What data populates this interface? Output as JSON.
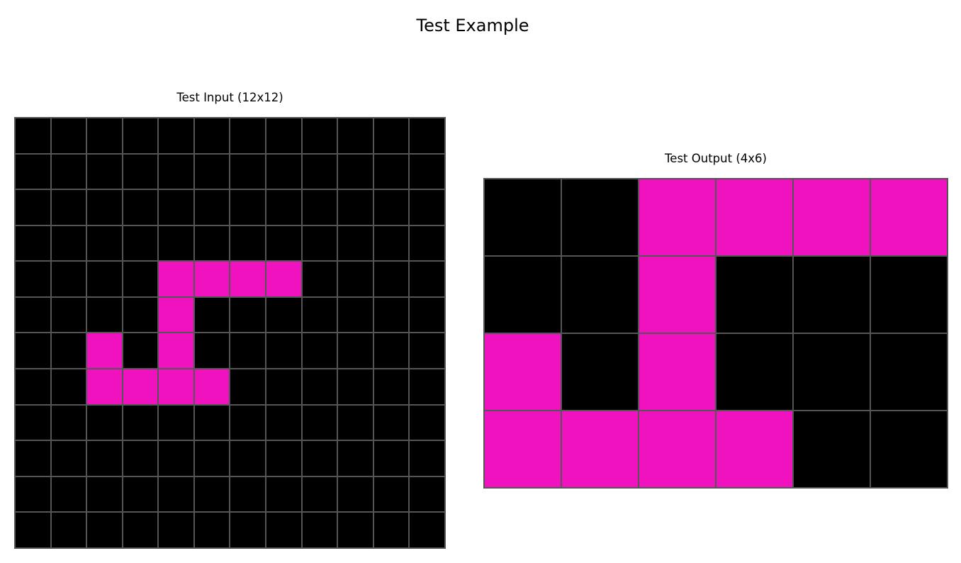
{
  "figure": {
    "title": "Test Example"
  },
  "palette": {
    "0": "#000000",
    "6": "#f012be"
  },
  "input_panel": {
    "title": "Test Input (12x12)",
    "grid": [
      [
        0,
        0,
        0,
        0,
        0,
        0,
        0,
        0,
        0,
        0,
        0,
        0
      ],
      [
        0,
        0,
        0,
        0,
        0,
        0,
        0,
        0,
        0,
        0,
        0,
        0
      ],
      [
        0,
        0,
        0,
        0,
        0,
        0,
        0,
        0,
        0,
        0,
        0,
        0
      ],
      [
        0,
        0,
        0,
        0,
        0,
        0,
        0,
        0,
        0,
        0,
        0,
        0
      ],
      [
        0,
        0,
        0,
        0,
        6,
        6,
        6,
        6,
        0,
        0,
        0,
        0
      ],
      [
        0,
        0,
        0,
        0,
        6,
        0,
        0,
        0,
        0,
        0,
        0,
        0
      ],
      [
        0,
        0,
        6,
        0,
        6,
        0,
        0,
        0,
        0,
        0,
        0,
        0
      ],
      [
        0,
        0,
        6,
        6,
        6,
        6,
        0,
        0,
        0,
        0,
        0,
        0
      ],
      [
        0,
        0,
        0,
        0,
        0,
        0,
        0,
        0,
        0,
        0,
        0,
        0
      ],
      [
        0,
        0,
        0,
        0,
        0,
        0,
        0,
        0,
        0,
        0,
        0,
        0
      ],
      [
        0,
        0,
        0,
        0,
        0,
        0,
        0,
        0,
        0,
        0,
        0,
        0
      ],
      [
        0,
        0,
        0,
        0,
        0,
        0,
        0,
        0,
        0,
        0,
        0,
        0
      ]
    ]
  },
  "output_panel": {
    "title": "Test Output (4x6)",
    "grid": [
      [
        0,
        0,
        6,
        6,
        6,
        6
      ],
      [
        0,
        0,
        6,
        0,
        0,
        0
      ],
      [
        6,
        0,
        6,
        0,
        0,
        0
      ],
      [
        6,
        6,
        6,
        6,
        0,
        0
      ]
    ]
  }
}
